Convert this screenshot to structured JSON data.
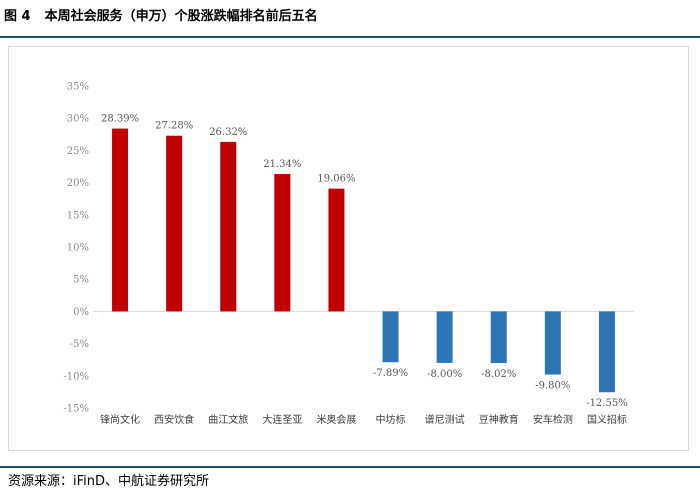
{
  "header": {
    "figure_number": "图 4",
    "title": "本周社会服务（申万）个股涨跌幅排名前后五名"
  },
  "footer": {
    "source": "资源来源：iFinD、中航证券研究所"
  },
  "colors": {
    "rule": "#1f4e79",
    "positive_bar": "#c00000",
    "negative_bar": "#2e75b6"
  },
  "chart_data": {
    "type": "bar",
    "title": "",
    "xlabel": "",
    "ylabel": "",
    "categories": [
      "锋尚文化",
      "西安饮食",
      "曲江文旅",
      "大连圣亚",
      "米奥会展",
      "中坊标",
      "谱尼测试",
      "豆神教育",
      "安车检测",
      "国义招标"
    ],
    "values": [
      28.39,
      27.28,
      26.32,
      21.34,
      19.06,
      -7.89,
      -8.0,
      -8.02,
      -9.8,
      -12.55
    ],
    "data_labels": [
      "28.39%",
      "27.28%",
      "26.32%",
      "21.34%",
      "19.06%",
      "-7.89%",
      "-8.00%",
      "-8.02%",
      "-9.80%",
      "-12.55%"
    ],
    "ylim": [
      -15,
      35
    ],
    "yticks": [
      35,
      30,
      25,
      20,
      15,
      10,
      5,
      0,
      -5,
      -10,
      -15
    ],
    "ytick_labels": [
      "35%",
      "30%",
      "25%",
      "20%",
      "15%",
      "10%",
      "5%",
      "0%",
      "-5%",
      "-10%",
      "-15%"
    ],
    "grid": false,
    "legend": "none"
  }
}
